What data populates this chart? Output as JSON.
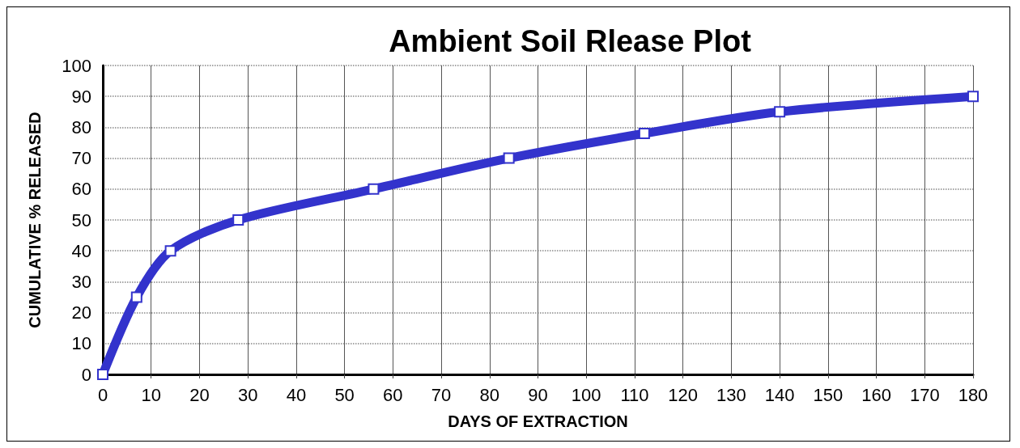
{
  "chart_data": {
    "type": "line",
    "title": "Ambient Soil Rlease Plot",
    "xlabel": "DAYS OF EXTRACTION",
    "ylabel": "CUMULATIVE % RELEASED",
    "x": [
      0,
      7,
      14,
      28,
      56,
      84,
      112,
      140,
      180
    ],
    "series": [
      {
        "color": "#3333cc",
        "values": [
          0,
          25,
          40,
          50,
          60,
          70,
          78,
          85,
          90
        ]
      }
    ],
    "xlim": [
      0,
      180
    ],
    "xticks": [
      0,
      10,
      20,
      30,
      40,
      50,
      60,
      70,
      80,
      90,
      100,
      110,
      120,
      130,
      140,
      150,
      160,
      170,
      180
    ],
    "ylim": [
      0,
      100
    ],
    "yticks": [
      0,
      10,
      20,
      30,
      40,
      50,
      60,
      70,
      80,
      90,
      100
    ],
    "grid": true,
    "marker": "square",
    "line_style": "solid"
  }
}
